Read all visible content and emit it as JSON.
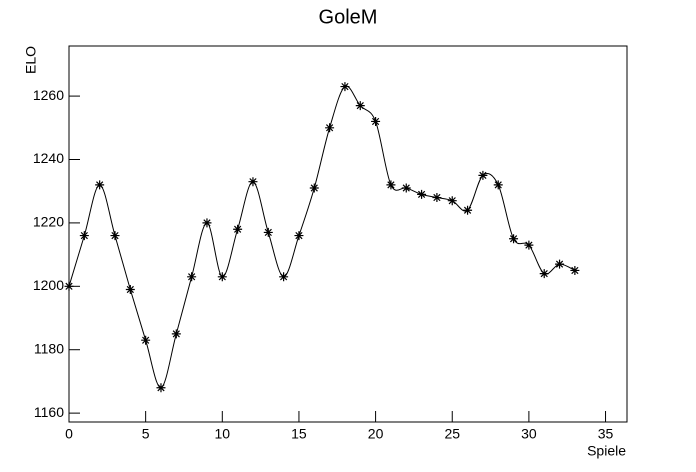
{
  "chart_data": {
    "type": "line",
    "title": "GoleM",
    "x_label": "Spiele",
    "y_label": "ELO",
    "x": [
      0,
      1,
      2,
      3,
      4,
      5,
      6,
      7,
      8,
      9,
      10,
      11,
      12,
      13,
      14,
      15,
      16,
      17,
      18,
      19,
      20,
      21,
      22,
      23,
      24,
      25,
      26,
      27,
      28,
      29,
      30,
      31,
      32,
      33
    ],
    "series": [
      {
        "color": "#000000",
        "values": [
          1200,
          1216,
          1232,
          1216,
          1199,
          1183,
          1168,
          1185,
          1203,
          1220,
          1203,
          1218,
          1233,
          1217,
          1203,
          1216,
          1231,
          1250,
          1263,
          1257,
          1252,
          1232,
          1231,
          1229,
          1228,
          1227,
          1224,
          1235,
          1232,
          1215,
          1213,
          1204,
          1207,
          1205
        ]
      }
    ],
    "xlim": [
      0,
      36.4
    ],
    "ylim": [
      1157.2,
      1275.8
    ],
    "xticks": [
      0,
      5,
      10,
      15,
      20,
      25,
      30,
      35
    ],
    "yticks": [
      1160,
      1180,
      1200,
      1220,
      1240,
      1260
    ]
  }
}
